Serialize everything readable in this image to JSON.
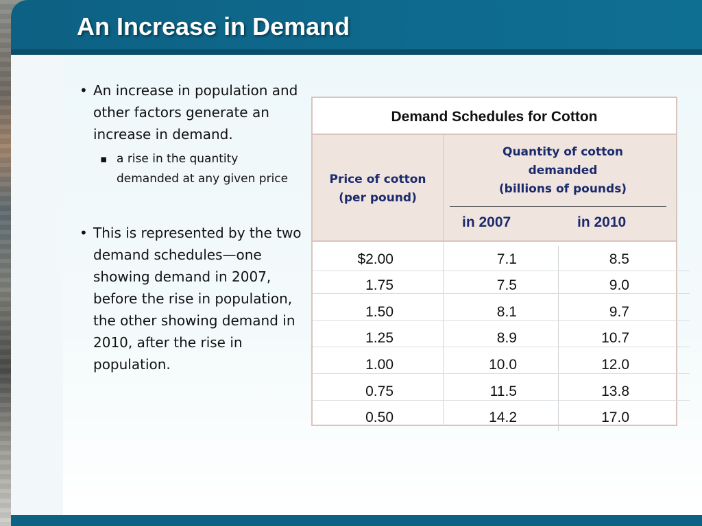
{
  "slide": {
    "title": "An Increase in Demand"
  },
  "bullets": {
    "item1": "An increase in population and other factors generate an increase in demand.",
    "item1_sub": "a rise in the quantity demanded at any given price",
    "item2": "This is represented by the two demand schedules—one showing demand in 2007, before the rise in population, the other showing demand in 2010, after the rise in population."
  },
  "table": {
    "title": "Demand Schedules for Cotton",
    "price_header_line1": "Price of cotton",
    "price_header_line2": "(per pound)",
    "qty_header_line1": "Quantity of cotton",
    "qty_header_line2": "demanded",
    "qty_header_line3": "(billions of pounds)",
    "year_2007": "in 2007",
    "year_2010": "in 2010",
    "rows": [
      {
        "price": "$2.00",
        "q2007": "7.1",
        "q2010": "8.5"
      },
      {
        "price": "1.75",
        "q2007": "7.5",
        "q2010": "9.0"
      },
      {
        "price": "1.50",
        "q2007": "8.1",
        "q2010": "9.7"
      },
      {
        "price": "1.25",
        "q2007": "8.9",
        "q2010": "10.7"
      },
      {
        "price": "1.00",
        "q2007": "10.0",
        "q2010": "12.0"
      },
      {
        "price": "0.75",
        "q2007": "11.5",
        "q2010": "13.8"
      },
      {
        "price": "0.50",
        "q2007": "14.2",
        "q2010": "17.0"
      }
    ]
  },
  "colors": {
    "title_bar": "#0d6183",
    "table_header_bg": "#f0e4df",
    "header_text": "#1a2a6c"
  }
}
